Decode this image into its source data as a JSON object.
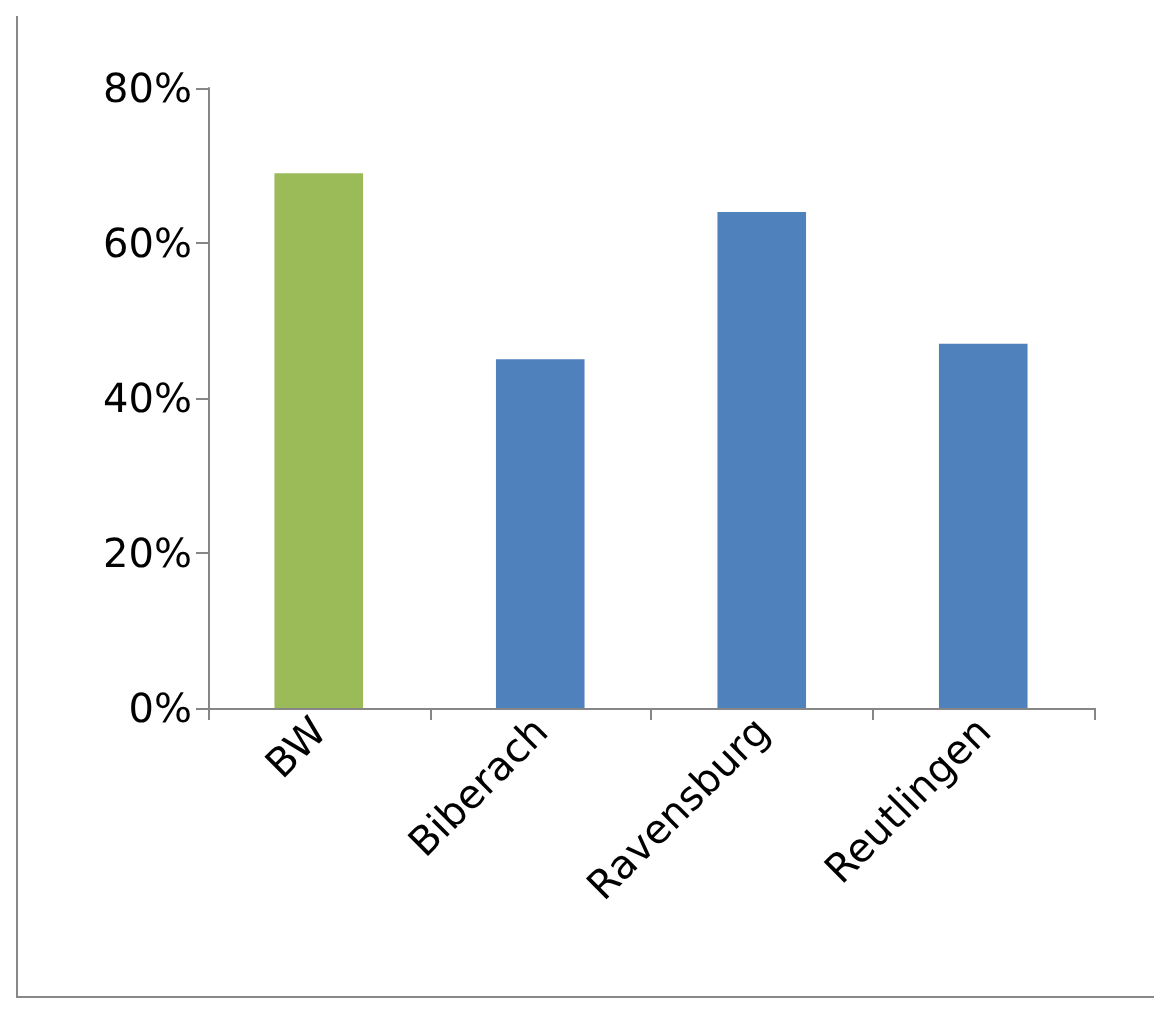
{
  "chart_data": {
    "type": "bar",
    "categories": [
      "BW",
      "Biberach",
      "Ravensburg",
      "Reutlingen"
    ],
    "values": [
      69,
      45,
      64,
      47
    ],
    "colors": [
      "#9bbb59",
      "#4f81bd",
      "#4f81bd",
      "#4f81bd"
    ],
    "ylim": [
      0,
      80
    ],
    "yticks": [
      {
        "value": 0,
        "label": "0%"
      },
      {
        "value": 20,
        "label": "20%"
      },
      {
        "value": 40,
        "label": "40%"
      },
      {
        "value": 60,
        "label": "60%"
      },
      {
        "value": 80,
        "label": "80%"
      }
    ],
    "grid": false
  }
}
